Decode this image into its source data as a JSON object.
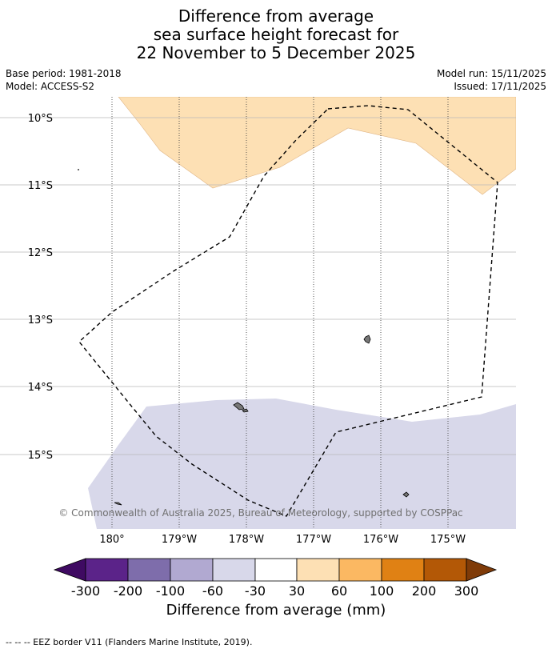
{
  "title": {
    "line1": "Difference from average",
    "line2": "sea surface height forecast for",
    "line3": "22 November to 5 December 2025"
  },
  "info": {
    "base_period": "Base period: 1981-2018",
    "model": "Model: ACCESS-S2",
    "model_run": "Model run: 15/11/2025",
    "issued": "Issued: 17/11/2025"
  },
  "map": {
    "lat_labels": [
      "10°S",
      "11°S",
      "12°S",
      "13°S",
      "14°S",
      "15°S"
    ],
    "lon_labels": [
      "180°",
      "179°W",
      "178°W",
      "177°W",
      "176°W",
      "175°W"
    ],
    "copyright": "© Commonwealth of Australia 2025, Bureau of Meteorology, supported by COSPPac",
    "legend_colors": {
      "positive_30_60": "#fde0b4",
      "negative_60_30": "#d8d8ea"
    }
  },
  "colorbar": {
    "labels": [
      "-300",
      "-200",
      "-100",
      "-60",
      "-30",
      "30",
      "60",
      "100",
      "200",
      "300"
    ],
    "colors": [
      "#3f0a62",
      "#5b2389",
      "#7e6dab",
      "#b1a9d1",
      "#d8d8ea",
      "#ffffff",
      "#fde0b4",
      "#fbb862",
      "#e08114",
      "#b35806",
      "#7f3b08"
    ],
    "label": "Difference from average (mm)"
  },
  "footer": "--  --  -- EEZ border V11 (Flanders Marine Institute, 2019)."
}
